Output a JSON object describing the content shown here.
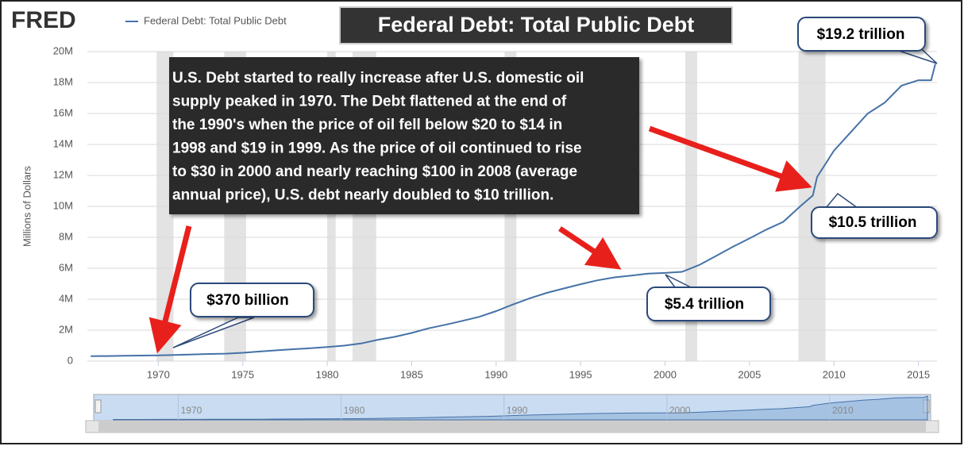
{
  "chart_data": {
    "type": "line",
    "logo": "FRED",
    "title": "Federal Debt: Total Public Debt",
    "y_label": "Millions of Dollars",
    "x": [
      1966,
      1967,
      1968,
      1969,
      1970,
      1971,
      1972,
      1973,
      1974,
      1975,
      1976,
      1977,
      1978,
      1979,
      1980,
      1981,
      1982,
      1983,
      1984,
      1985,
      1986,
      1987,
      1988,
      1989,
      1990,
      1991,
      1992,
      1993,
      1994,
      1995,
      1996,
      1997,
      1998,
      1999,
      2000,
      2001,
      2002,
      2003,
      2004,
      2005,
      2006,
      2007,
      2008,
      2008.75,
      2009,
      2010,
      2011,
      2012,
      2013,
      2014,
      2015,
      2015.75,
      2016
    ],
    "series": [
      {
        "name": "Federal Debt: Total Public Debt",
        "color": "#4572a7",
        "values": [
          320000,
          330000,
          350000,
          360000,
          370000,
          400000,
          430000,
          460000,
          480000,
          540000,
          620000,
          700000,
          770000,
          830000,
          910000,
          1000000,
          1140000,
          1380000,
          1570000,
          1820000,
          2120000,
          2350000,
          2600000,
          2860000,
          3230000,
          3660000,
          4060000,
          4410000,
          4690000,
          4970000,
          5220000,
          5410000,
          5530000,
          5650000,
          5700000,
          5770000,
          6200000,
          6780000,
          7380000,
          7930000,
          8500000,
          9000000,
          10000000,
          10700000,
          11900000,
          13600000,
          14800000,
          16000000,
          16700000,
          17800000,
          18150000,
          18150000,
          19200000
        ]
      }
    ],
    "xlim": [
      1965.8,
      2016.1
    ],
    "ylim": [
      0,
      20000000
    ],
    "xticks": [
      1970,
      1975,
      1980,
      1985,
      1990,
      1995,
      2000,
      2005,
      2010,
      2015
    ],
    "yticks": [
      0,
      {
        "value": 2000000,
        "label": "2M"
      },
      {
        "value": 4000000,
        "label": "4M"
      },
      {
        "value": 6000000,
        "label": "6M"
      },
      {
        "value": 8000000,
        "label": "8M"
      },
      {
        "value": 10000000,
        "label": "10M"
      },
      {
        "value": 12000000,
        "label": "12M"
      },
      {
        "value": 14000000,
        "label": "14M"
      },
      {
        "value": 16000000,
        "label": "16M"
      },
      {
        "value": 18000000,
        "label": "18M"
      },
      {
        "value": 20000000,
        "label": "20M"
      }
    ],
    "recessions": [
      [
        1969.9,
        1970.9
      ],
      [
        1973.9,
        1975.2
      ],
      [
        1980.0,
        1980.5
      ],
      [
        1981.5,
        1982.9
      ],
      [
        1990.5,
        1991.2
      ],
      [
        2001.2,
        2001.9
      ],
      [
        2007.9,
        2009.5
      ]
    ],
    "annotation": [
      "U.S. Debt started to really increase after U.S. domestic oil",
      "supply peaked in 1970.  The Debt flattened at the end of",
      "the 1990's when the price of oil fell below $20 to $14 in",
      "1998 and $19 in 1999.  As the price of oil continued to rise",
      "to $30 in 2000 and nearly reaching $100 in 2008 (average",
      "annual price), U.S. debt nearly doubled to $10 trillion."
    ],
    "callouts": [
      "$370 billion",
      "$5.4 trillion",
      "$10.5 trillion",
      "$19.2 trillion"
    ],
    "navigator_xlim": [
      1964.9,
      2016.0
    ],
    "navigator_xticks": [
      1970,
      1980,
      1990,
      2000,
      2010
    ]
  }
}
